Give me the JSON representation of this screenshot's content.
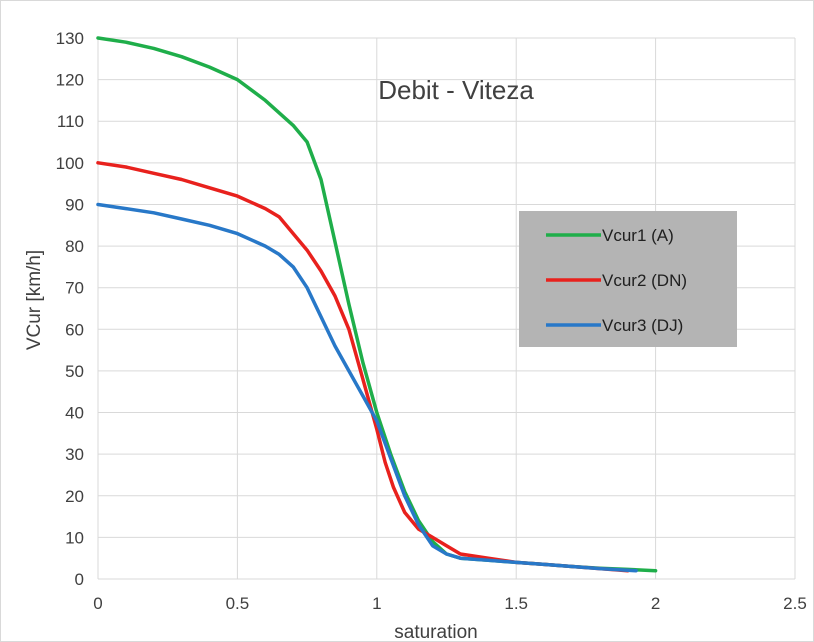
{
  "chart_data": {
    "type": "line",
    "title": "Debit - Viteza",
    "xlabel": "saturation",
    "ylabel": "VCur [km/h]",
    "xlim": [
      0,
      2.5
    ],
    "ylim": [
      0,
      130
    ],
    "x_ticks": [
      "0",
      "0.5",
      "1",
      "1.5",
      "2",
      "2.5"
    ],
    "y_ticks": [
      "0",
      "10",
      "20",
      "30",
      "40",
      "50",
      "60",
      "70",
      "80",
      "90",
      "100",
      "110",
      "120",
      "130"
    ],
    "grid": true,
    "legend_position": "right",
    "legend_background": "#b4b4b4",
    "series": [
      {
        "name": "Vcur1 (A)",
        "color": "#1fae4a",
        "points": [
          [
            0,
            130
          ],
          [
            0.1,
            129
          ],
          [
            0.2,
            127.5
          ],
          [
            0.3,
            125.5
          ],
          [
            0.4,
            123
          ],
          [
            0.5,
            120
          ],
          [
            0.6,
            115
          ],
          [
            0.7,
            109
          ],
          [
            0.75,
            105
          ],
          [
            0.8,
            96
          ],
          [
            0.85,
            81
          ],
          [
            0.9,
            66
          ],
          [
            0.95,
            52
          ],
          [
            1.0,
            40
          ],
          [
            1.05,
            30
          ],
          [
            1.1,
            21
          ],
          [
            1.15,
            14
          ],
          [
            1.2,
            9
          ],
          [
            1.25,
            6
          ],
          [
            1.3,
            5
          ],
          [
            1.4,
            4.5
          ],
          [
            1.5,
            4
          ],
          [
            1.6,
            3.5
          ],
          [
            1.7,
            3
          ],
          [
            1.8,
            2.6
          ],
          [
            1.9,
            2.3
          ],
          [
            2.0,
            2
          ]
        ]
      },
      {
        "name": "Vcur2 (DN)",
        "color": "#e8211d",
        "points": [
          [
            0,
            100
          ],
          [
            0.1,
            99
          ],
          [
            0.2,
            97.5
          ],
          [
            0.3,
            96
          ],
          [
            0.4,
            94
          ],
          [
            0.5,
            92
          ],
          [
            0.6,
            89
          ],
          [
            0.65,
            87
          ],
          [
            0.7,
            83
          ],
          [
            0.75,
            79
          ],
          [
            0.8,
            74
          ],
          [
            0.85,
            68
          ],
          [
            0.9,
            60
          ],
          [
            0.95,
            48
          ],
          [
            1.0,
            36
          ],
          [
            1.03,
            28
          ],
          [
            1.06,
            22
          ],
          [
            1.1,
            16
          ],
          [
            1.15,
            12
          ],
          [
            1.2,
            10
          ],
          [
            1.25,
            8
          ],
          [
            1.3,
            6
          ],
          [
            1.4,
            5
          ],
          [
            1.5,
            4
          ],
          [
            1.6,
            3.5
          ],
          [
            1.7,
            3
          ],
          [
            1.8,
            2.5
          ],
          [
            1.9,
            2
          ]
        ]
      },
      {
        "name": "Vcur3 (DJ)",
        "color": "#2878c8",
        "points": [
          [
            0,
            90
          ],
          [
            0.1,
            89
          ],
          [
            0.2,
            88
          ],
          [
            0.3,
            86.5
          ],
          [
            0.4,
            85
          ],
          [
            0.5,
            83
          ],
          [
            0.6,
            80
          ],
          [
            0.65,
            78
          ],
          [
            0.7,
            75
          ],
          [
            0.75,
            70
          ],
          [
            0.8,
            63
          ],
          [
            0.85,
            56
          ],
          [
            0.9,
            50
          ],
          [
            0.95,
            44
          ],
          [
            1.0,
            38
          ],
          [
            1.05,
            29
          ],
          [
            1.1,
            20
          ],
          [
            1.15,
            13
          ],
          [
            1.2,
            8
          ],
          [
            1.25,
            6
          ],
          [
            1.3,
            5
          ],
          [
            1.4,
            4.5
          ],
          [
            1.5,
            4
          ],
          [
            1.6,
            3.5
          ],
          [
            1.7,
            3
          ],
          [
            1.8,
            2.5
          ],
          [
            1.93,
            2
          ]
        ]
      }
    ]
  }
}
